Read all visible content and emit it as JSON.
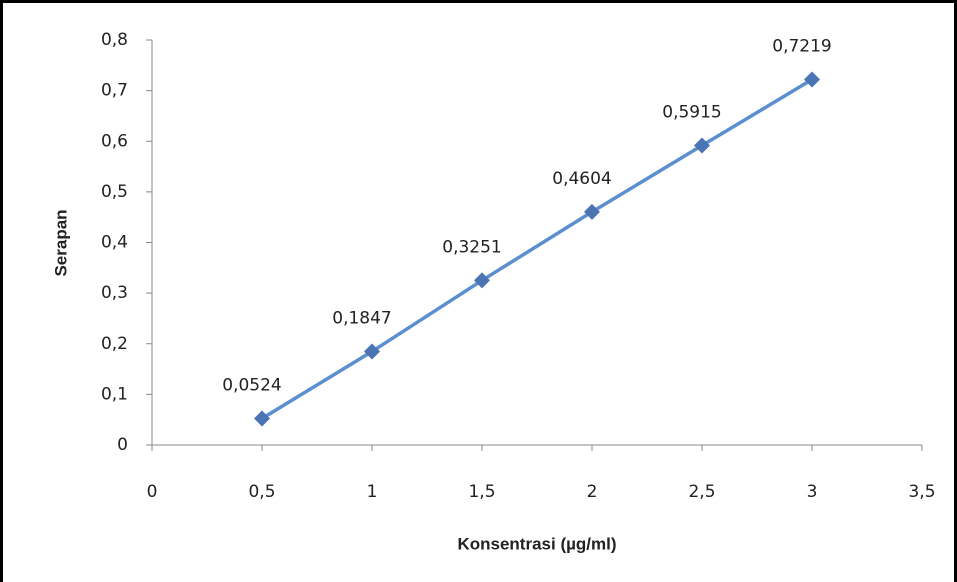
{
  "chart_data": {
    "type": "line",
    "x_label": "Konsentrasi (µg/ml)",
    "y_label": "Serapan",
    "x": [
      0.5,
      1,
      1.5,
      2,
      2.5,
      3
    ],
    "series": [
      {
        "color": "#4a74b4",
        "values": [
          0.0524,
          0.1847,
          0.3251,
          0.4604,
          0.5915,
          0.7219
        ],
        "value_labels": [
          "0,0524",
          "0,1847",
          "0,3251",
          "0,4604",
          "0,5915",
          "0,7219"
        ]
      }
    ],
    "xlim": [
      0,
      3.5
    ],
    "xticks": [
      0,
      {
        "value": 0.5,
        "label": "0,5"
      },
      1,
      {
        "value": 1.5,
        "label": "1,5"
      },
      2,
      {
        "value": 2.5,
        "label": "2,5"
      },
      3,
      {
        "value": 3.5,
        "label": "3,5"
      }
    ],
    "ylim": [
      0,
      0.8
    ],
    "yticks": [
      0,
      {
        "value": 0.1,
        "label": "0,1"
      },
      {
        "value": 0.2,
        "label": "0,2"
      },
      {
        "value": 0.3,
        "label": "0,3"
      },
      {
        "value": 0.4,
        "label": "0,4"
      },
      {
        "value": 0.5,
        "label": "0,5"
      },
      {
        "value": 0.6,
        "label": "0,6"
      },
      {
        "value": 0.7,
        "label": "0,7"
      },
      {
        "value": 0.8,
        "label": "0,8"
      }
    ],
    "grid": false
  }
}
